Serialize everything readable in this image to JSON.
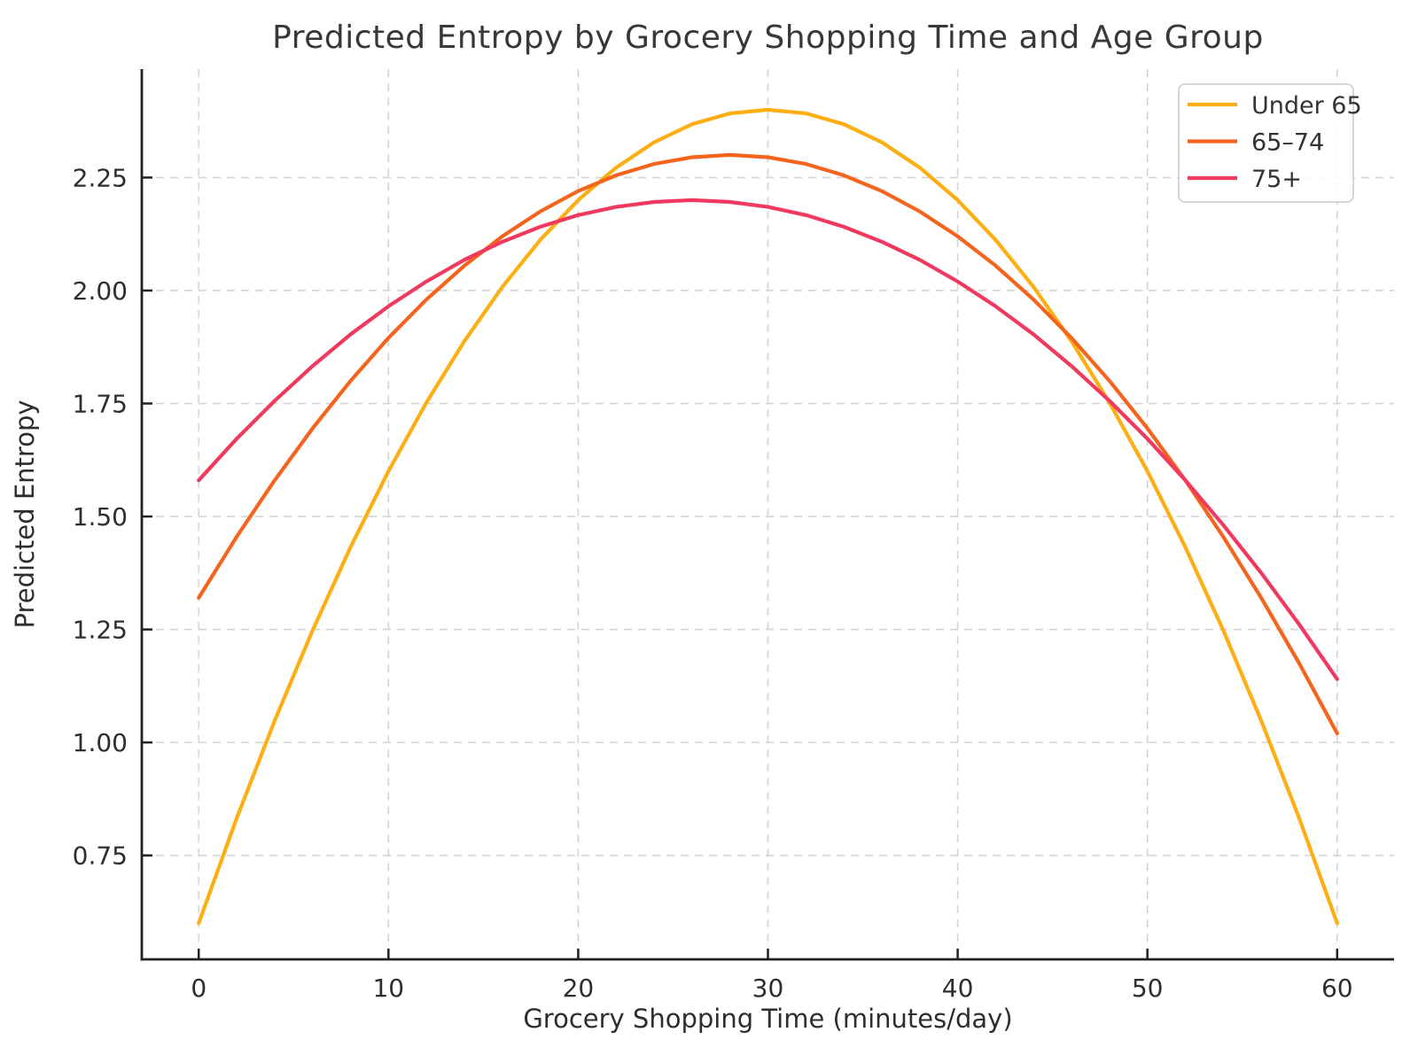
{
  "chart_data": {
    "type": "line",
    "title": "Predicted Entropy by Grocery Shopping Time and Age Group",
    "xlabel": "Grocery Shopping Time (minutes/day)",
    "ylabel": "Predicted Entropy",
    "xlim": [
      -3,
      63
    ],
    "ylim": [
      0.52,
      2.49
    ],
    "xticks": [
      0,
      10,
      20,
      30,
      40,
      50,
      60
    ],
    "yticks": [
      0.75,
      1.0,
      1.25,
      1.5,
      1.75,
      2.0,
      2.25
    ],
    "grid": "both-dashed",
    "legend_position": "upper right",
    "x": [
      0,
      2,
      4,
      6,
      8,
      10,
      12,
      14,
      16,
      18,
      20,
      22,
      24,
      26,
      28,
      30,
      32,
      34,
      36,
      38,
      40,
      42,
      44,
      46,
      48,
      50,
      52,
      54,
      56,
      58,
      60
    ],
    "series": [
      {
        "name": "Under 65",
        "color": "#FCAE12",
        "peak": {
          "x": 30,
          "y": 2.4
        },
        "values": [
          0.6,
          0.832,
          1.048,
          1.248,
          1.432,
          1.6,
          1.752,
          1.888,
          2.008,
          2.112,
          2.2,
          2.272,
          2.328,
          2.368,
          2.392,
          2.4,
          2.392,
          2.368,
          2.328,
          2.272,
          2.2,
          2.112,
          2.008,
          1.888,
          1.752,
          1.6,
          1.432,
          1.248,
          1.048,
          0.832,
          0.6
        ]
      },
      {
        "name": "65–74",
        "color": "#F5641D",
        "peak": {
          "x": 28,
          "y": 2.3
        },
        "values": [
          1.32,
          1.455,
          1.58,
          1.695,
          1.8,
          1.895,
          1.98,
          2.055,
          2.12,
          2.175,
          2.22,
          2.255,
          2.28,
          2.295,
          2.3,
          2.295,
          2.28,
          2.255,
          2.22,
          2.175,
          2.12,
          2.055,
          1.98,
          1.895,
          1.8,
          1.695,
          1.58,
          1.455,
          1.32,
          1.175,
          1.02
        ]
      },
      {
        "name": "75+",
        "color": "#F0395E",
        "peak": {
          "x": 26,
          "y": 2.2
        },
        "values": [
          1.58,
          1.672,
          1.756,
          1.833,
          1.903,
          1.965,
          2.02,
          2.068,
          2.108,
          2.141,
          2.167,
          2.185,
          2.196,
          2.2,
          2.196,
          2.185,
          2.167,
          2.141,
          2.108,
          2.068,
          2.02,
          1.965,
          1.903,
          1.833,
          1.756,
          1.672,
          1.58,
          1.481,
          1.375,
          1.261,
          1.14
        ]
      }
    ],
    "legend_labels": [
      "Under 65",
      "65–74",
      "75+"
    ],
    "colors": {
      "text": "#383838",
      "tick_text": "#2e2e2e",
      "grid": "#d4d4d4",
      "spine": "#212121",
      "legend_border": "#cccccc"
    }
  }
}
